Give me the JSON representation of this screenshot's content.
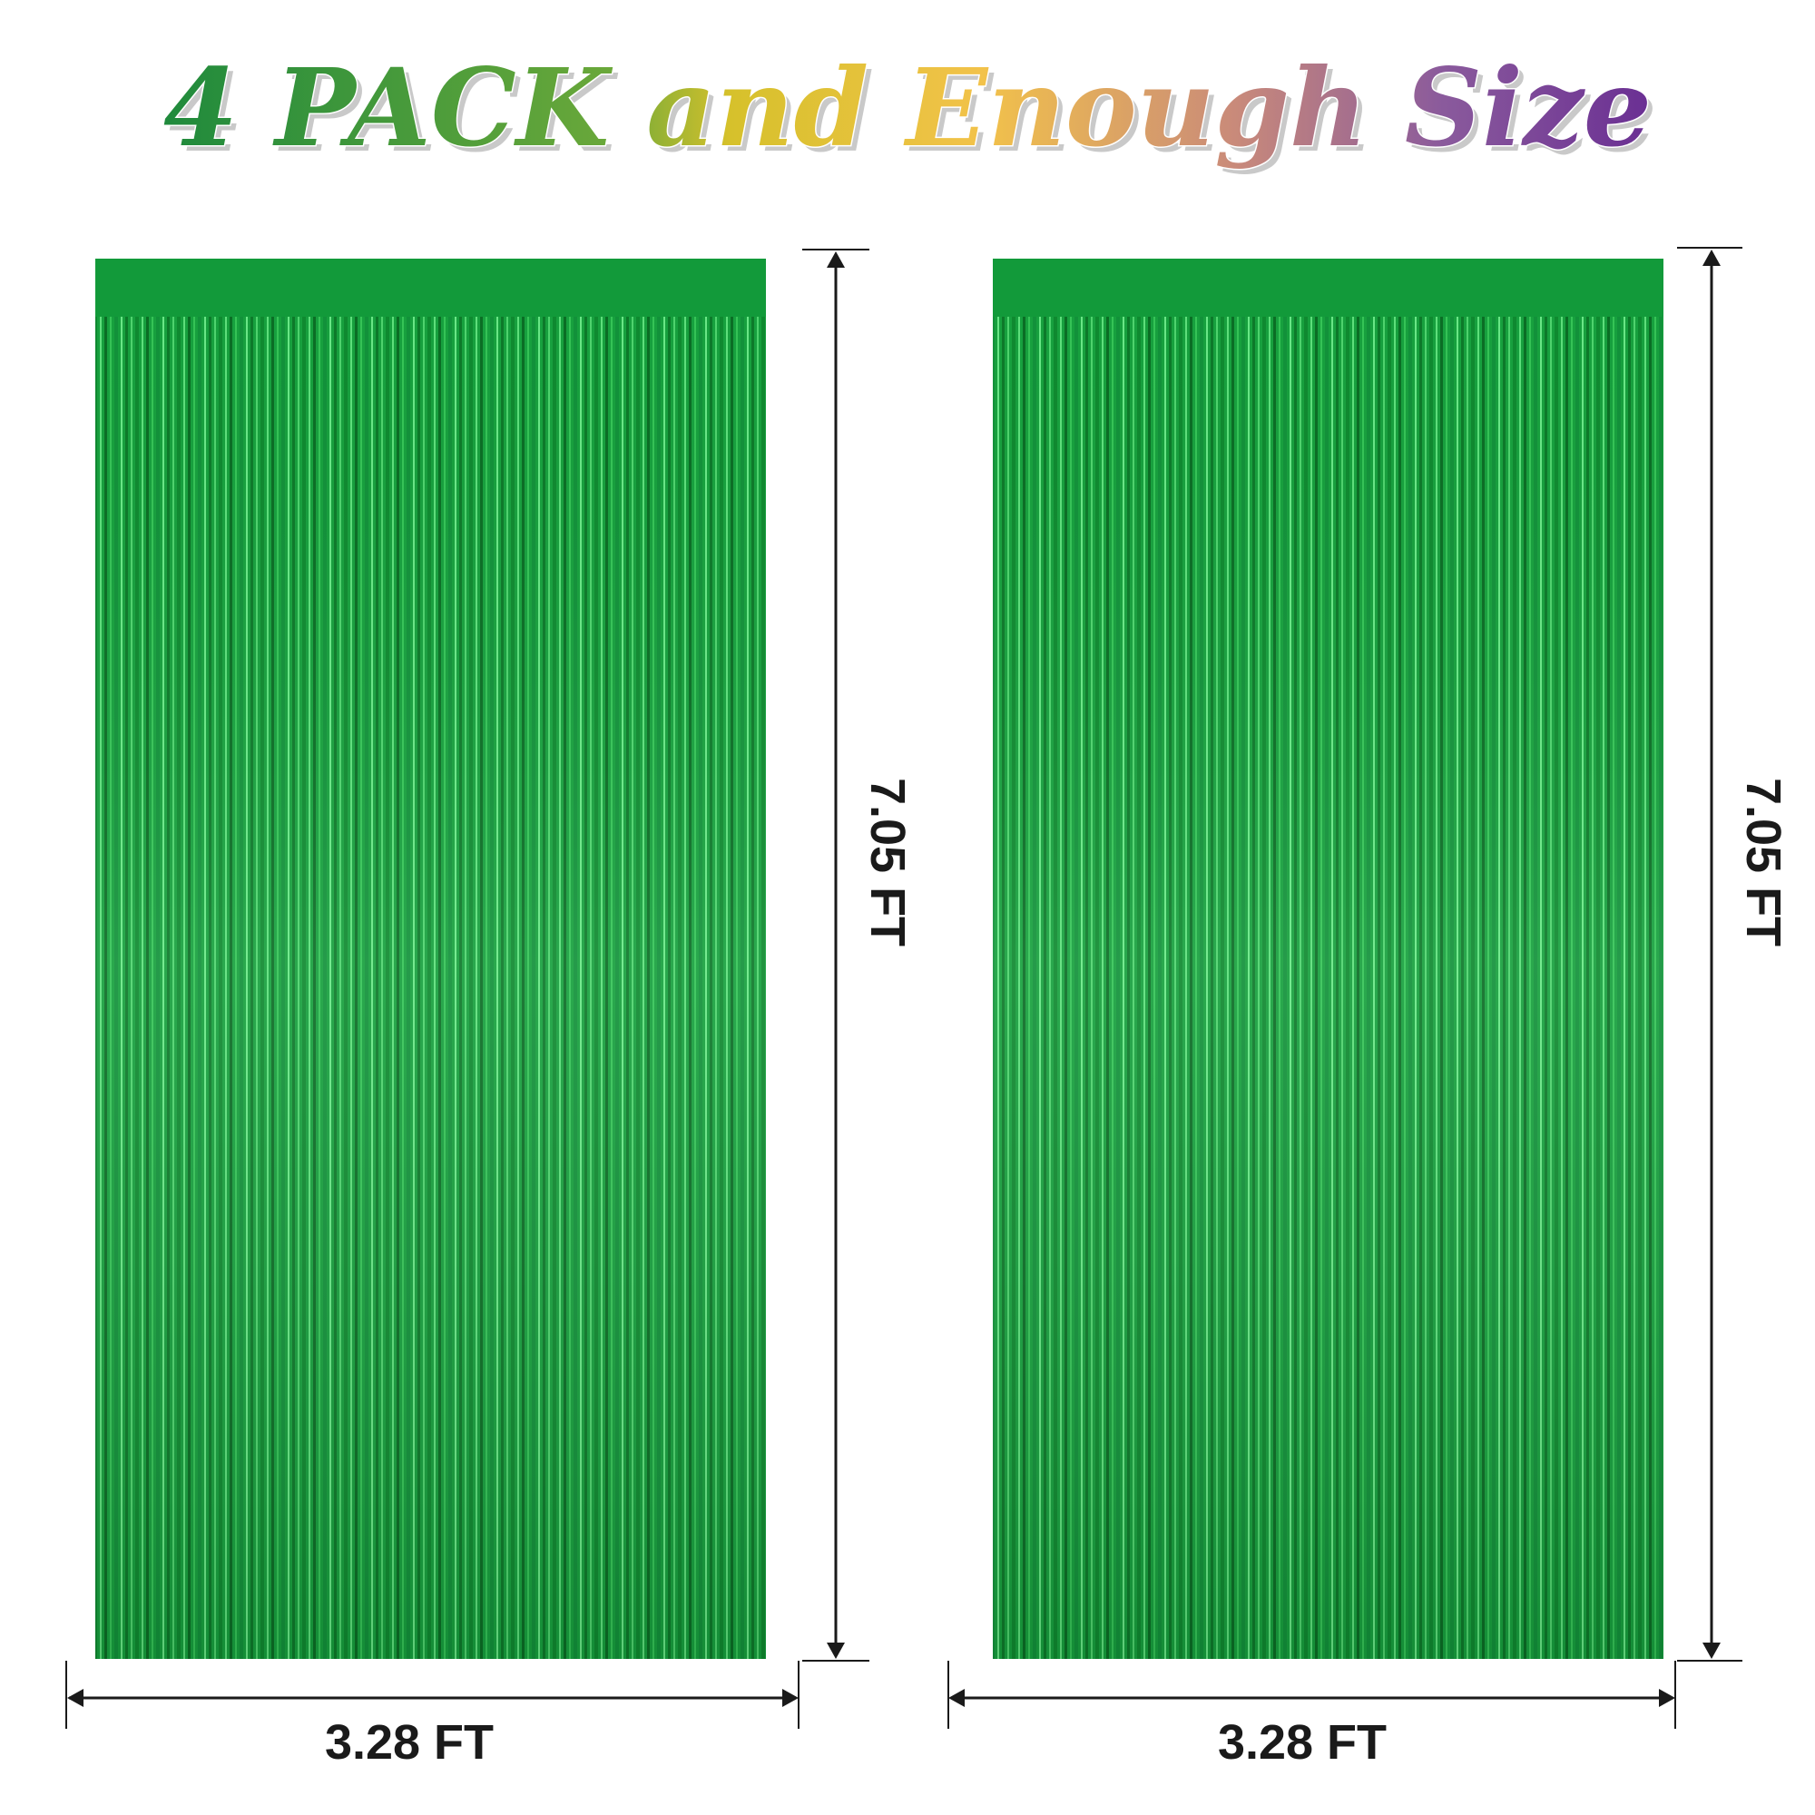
{
  "title": "4 PACK and Enough Size",
  "curtains": [
    {
      "width_label": "3.28 FT",
      "height_label": "7.05 FT"
    },
    {
      "width_label": "3.28 FT",
      "height_label": "7.05 FT"
    }
  ]
}
